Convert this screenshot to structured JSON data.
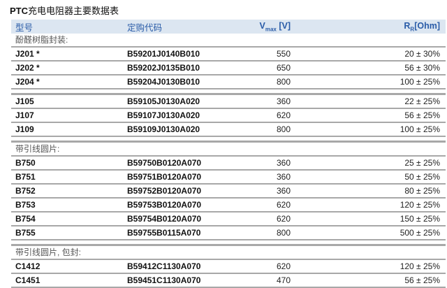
{
  "title": {
    "prefix": "PTC",
    "text": "充电电阻器主要数据表"
  },
  "header": {
    "type": "型号",
    "order_code": "定购代码",
    "vmax_main": "V",
    "vmax_sub": "max",
    "vmax_unit": " [V]",
    "rr_main": "R",
    "rr_sub": "R",
    "rr_unit": "[Ohm]"
  },
  "groups": [
    {
      "label": "酚醛树脂封装:",
      "rows": [
        {
          "type": "J201 *",
          "code": "B59201J0140B010",
          "vmax": "550",
          "rr": "20 ± 30%"
        },
        {
          "type": "J202 *",
          "code": "B59202J0135B010",
          "vmax": "650",
          "rr": "56 ± 30%"
        },
        {
          "type": "J204 *",
          "code": "B59204J0130B010",
          "vmax": "800",
          "rr": "100 ± 25%"
        }
      ]
    },
    {
      "label": "",
      "rows": [
        {
          "type": "J105",
          "code": "B59105J0130A020",
          "vmax": "360",
          "rr": "22 ± 25%"
        },
        {
          "type": "J107",
          "code": "B59107J0130A020",
          "vmax": "620",
          "rr": "56 ± 25%"
        },
        {
          "type": "J109",
          "code": "B59109J0130A020",
          "vmax": "800",
          "rr": "100 ± 25%"
        }
      ]
    },
    {
      "label": "带引线圆片:",
      "rows": [
        {
          "type": "B750",
          "code": "B59750B0120A070",
          "vmax": "360",
          "rr": "25 ± 25%"
        },
        {
          "type": "B751",
          "code": "B59751B0120A070",
          "vmax": "360",
          "rr": "50 ± 25%"
        },
        {
          "type": "B752",
          "code": "B59752B0120A070",
          "vmax": "360",
          "rr": "80 ± 25%"
        },
        {
          "type": "B753",
          "code": "B59753B0120A070",
          "vmax": "620",
          "rr": "120 ± 25%"
        },
        {
          "type": "B754",
          "code": "B59754B0120A070",
          "vmax": "620",
          "rr": "150 ± 25%"
        },
        {
          "type": "B755",
          "code": "B59755B0115A070",
          "vmax": "800",
          "rr": "500 ± 25%"
        }
      ]
    },
    {
      "label": "带引线圆片, 包封:",
      "rows": [
        {
          "type": "C1412",
          "code": "B59412C1130A070",
          "vmax": "620",
          "rr": "120 ± 25%"
        },
        {
          "type": "C1451",
          "code": "B59451C1130A070",
          "vmax": "470",
          "rr": "56 ± 25%"
        }
      ]
    }
  ]
}
